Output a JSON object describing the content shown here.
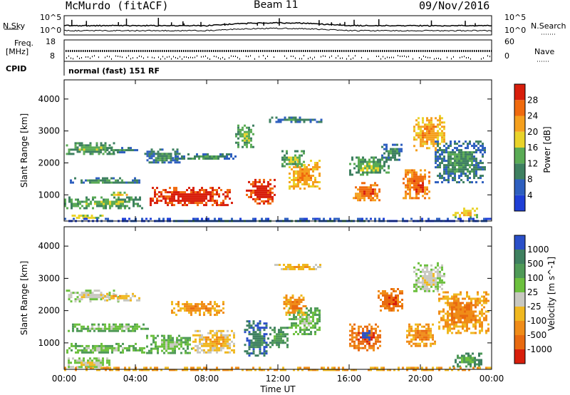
{
  "header": {
    "station": "McMurdo (fitACF)",
    "beam": "Beam 11",
    "date": "09/Nov/2016"
  },
  "summary_panels": {
    "nsky_label": "N.Sky",
    "nsearch_label": "N.Search",
    "noise_ticks": [
      "10^5",
      "10^0"
    ],
    "freq_label_1": "Freq.",
    "freq_label_2": "[MHz]",
    "freq_ticks": [
      "18",
      "8"
    ],
    "nave_label": "Nave",
    "nave_ticks": [
      "60",
      "0"
    ],
    "cpid_label": "CPID",
    "cpid_text": "normal (fast) 151 RF"
  },
  "colors": {
    "power_scale": [
      "#1f3fd6",
      "#2e5fbf",
      "#3e8060",
      "#5aab55",
      "#e9d32a",
      "#f5a01e",
      "#f06a0e",
      "#d81e0b"
    ],
    "velocity_scale": [
      "#2a4fc8",
      "#3e8060",
      "#4f9a57",
      "#6cc03e",
      "#c8c8c0",
      "#f0b820",
      "#f08c18",
      "#e86a10",
      "#d81e0b"
    ]
  },
  "chart_data": [
    {
      "type": "heatmap",
      "title": "Power",
      "ylabel": "Slant Range [km]",
      "xlabel": "",
      "ylim": [
        180,
        4600
      ],
      "yticks": [
        "1000",
        "2000",
        "3000",
        "4000"
      ],
      "xticks": [
        "00:00",
        "04:00",
        "08:00",
        "12:00",
        "16:00",
        "20:00",
        "00:00"
      ],
      "colorbar_label": "Power [dB]",
      "colorbar_ticks": [
        "4",
        "8",
        "12",
        "16",
        "20",
        "24",
        "28"
      ],
      "patches": [
        {
          "t": [
            0.1,
            2.8
          ],
          "r": [
            2300,
            2650
          ],
          "level": 3
        },
        {
          "t": [
            2.0,
            4.2
          ],
          "r": [
            2350,
            2500
          ],
          "level": 2
        },
        {
          "t": [
            0.2,
            4.5
          ],
          "r": [
            1350,
            1550
          ],
          "level": 2
        },
        {
          "t": [
            0.0,
            4.4
          ],
          "r": [
            600,
            950
          ],
          "level": 3
        },
        {
          "t": [
            0.3,
            2.2
          ],
          "r": [
            250,
            380
          ],
          "level": 4
        },
        {
          "t": [
            2.5,
            3.8
          ],
          "r": [
            1000,
            1100
          ],
          "level": 4
        },
        {
          "t": [
            4.8,
            9.4
          ],
          "r": [
            700,
            1250
          ],
          "level": 7
        },
        {
          "t": [
            4.5,
            6.5
          ],
          "r": [
            2000,
            2450
          ],
          "level": 2
        },
        {
          "t": [
            6.2,
            9.6
          ],
          "r": [
            2100,
            2300
          ],
          "level": 2
        },
        {
          "t": [
            10.2,
            11.8
          ],
          "r": [
            700,
            1500
          ],
          "level": 7
        },
        {
          "t": [
            9.6,
            10.6
          ],
          "r": [
            2500,
            3200
          ],
          "level": 3
        },
        {
          "t": [
            11.5,
            14.5
          ],
          "r": [
            3300,
            3450
          ],
          "level": 2
        },
        {
          "t": [
            12.6,
            14.3
          ],
          "r": [
            1200,
            2100
          ],
          "level": 5
        },
        {
          "t": [
            12.2,
            13.5
          ],
          "r": [
            1900,
            2400
          ],
          "level": 3
        },
        {
          "t": [
            16.2,
            17.7
          ],
          "r": [
            800,
            1400
          ],
          "level": 6
        },
        {
          "t": [
            16.0,
            18.2
          ],
          "r": [
            1600,
            2200
          ],
          "level": 3
        },
        {
          "t": [
            17.8,
            19.0
          ],
          "r": [
            2100,
            2600
          ],
          "level": 2
        },
        {
          "t": [
            19.6,
            21.3
          ],
          "r": [
            2400,
            3500
          ],
          "level": 5
        },
        {
          "t": [
            19.0,
            20.5
          ],
          "r": [
            900,
            1800
          ],
          "level": 6
        },
        {
          "t": [
            20.8,
            23.6
          ],
          "r": [
            1400,
            2700
          ],
          "level": 2
        },
        {
          "t": [
            21.8,
            23.2
          ],
          "r": [
            300,
            600
          ],
          "level": 4
        },
        {
          "t": [
            0.0,
            24.0
          ],
          "r": [
            180,
            280
          ],
          "level": 1
        }
      ]
    },
    {
      "type": "heatmap",
      "title": "Velocity",
      "ylabel": "Slant Range [km]",
      "xlabel": "Time UT",
      "ylim": [
        180,
        4600
      ],
      "yticks": [
        "1000",
        "2000",
        "3000",
        "4000"
      ],
      "xticks": [
        "00:00",
        "04:00",
        "08:00",
        "12:00",
        "16:00",
        "20:00",
        "00:00"
      ],
      "colorbar_label": "Velocity [m s^-1]",
      "colorbar_ticks": [
        "1000",
        "500",
        "100",
        "25",
        "-25",
        "-100",
        "-500",
        "-1000"
      ],
      "patches": [
        {
          "t": [
            0.1,
            3.0
          ],
          "r": [
            2300,
            2650
          ],
          "level": 4
        },
        {
          "t": [
            2.0,
            4.2
          ],
          "r": [
            2300,
            2550
          ],
          "level": 5
        },
        {
          "t": [
            0.2,
            4.8
          ],
          "r": [
            1350,
            1600
          ],
          "level": 3
        },
        {
          "t": [
            0.0,
            4.6
          ],
          "r": [
            700,
            1000
          ],
          "level": 3
        },
        {
          "t": [
            0.2,
            2.6
          ],
          "r": [
            220,
            550
          ],
          "level": 4
        },
        {
          "t": [
            4.6,
            7.2
          ],
          "r": [
            700,
            1250
          ],
          "level": 3
        },
        {
          "t": [
            7.2,
            9.6
          ],
          "r": [
            700,
            1400
          ],
          "level": 5
        },
        {
          "t": [
            6.0,
            9.0
          ],
          "r": [
            1900,
            2300
          ],
          "level": 6
        },
        {
          "t": [
            10.1,
            11.4
          ],
          "r": [
            600,
            1700
          ],
          "level": 1
        },
        {
          "t": [
            11.4,
            12.6
          ],
          "r": [
            900,
            1500
          ],
          "level": 2
        },
        {
          "t": [
            11.8,
            14.4
          ],
          "r": [
            3300,
            3450
          ],
          "level": 5
        },
        {
          "t": [
            12.6,
            14.4
          ],
          "r": [
            1300,
            2100
          ],
          "level": 3
        },
        {
          "t": [
            12.3,
            13.6
          ],
          "r": [
            1900,
            2500
          ],
          "level": 6
        },
        {
          "t": [
            16.0,
            17.8
          ],
          "r": [
            800,
            1600
          ],
          "level": 7
        },
        {
          "t": [
            16.6,
            17.2
          ],
          "r": [
            1100,
            1400
          ],
          "level": 0
        },
        {
          "t": [
            17.6,
            19.0
          ],
          "r": [
            2000,
            2700
          ],
          "level": 7
        },
        {
          "t": [
            19.6,
            21.3
          ],
          "r": [
            2600,
            3500
          ],
          "level": 4
        },
        {
          "t": [
            19.2,
            20.8
          ],
          "r": [
            900,
            1600
          ],
          "level": 6
        },
        {
          "t": [
            21.0,
            23.8
          ],
          "r": [
            1300,
            2600
          ],
          "level": 6
        },
        {
          "t": [
            21.8,
            23.4
          ],
          "r": [
            300,
            700
          ],
          "level": 2
        },
        {
          "t": [
            0.0,
            24.0
          ],
          "r": [
            180,
            260
          ],
          "level": 6
        }
      ]
    }
  ]
}
